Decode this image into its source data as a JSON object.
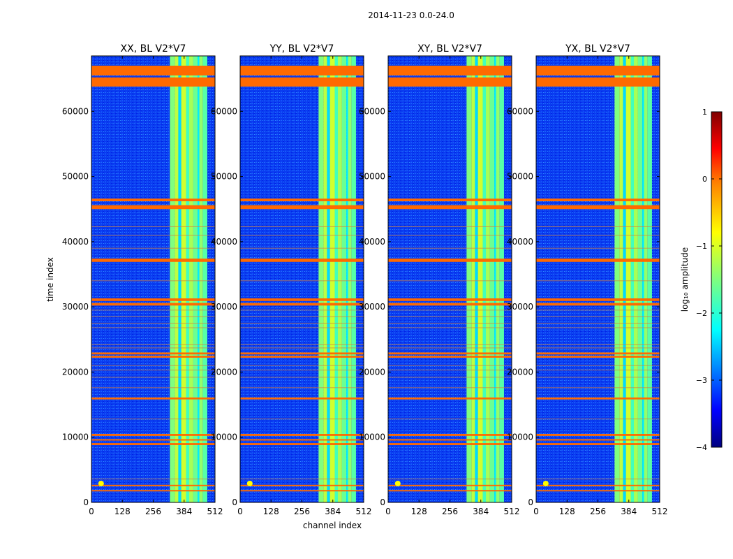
{
  "figure_title": "2014-11-23 0.0-24.0",
  "colors": {
    "background": "#ffffff",
    "flag": "#ff6a00",
    "faint_flag": "#d7823c",
    "panel_border": "#000000",
    "colormap": [
      "#00007f",
      "#0000ff",
      "#007fff",
      "#00ffff",
      "#7fff7f",
      "#ffff00",
      "#ff7f00",
      "#ff0000",
      "#7f0000"
    ]
  },
  "chart_data": {
    "type": "heatmap",
    "xlabel": "channel index",
    "ylabel": "time index",
    "xlim": [
      0,
      512
    ],
    "ylim": [
      0,
      68500
    ],
    "xticks": [
      0,
      128,
      256,
      384,
      512
    ],
    "yticks": [
      0,
      10000,
      20000,
      30000,
      40000,
      50000,
      60000
    ],
    "ytick_labels": [
      "0",
      "10000",
      "20000",
      "30000",
      "40000",
      "50000",
      "60000"
    ],
    "panels": [
      {
        "title": "XX, BL V2*V7",
        "id": "xx"
      },
      {
        "title": "YY, BL V2*V7",
        "id": "yy"
      },
      {
        "title": "XY, BL V2*V7",
        "id": "xy"
      },
      {
        "title": "YX, BL V2*V7",
        "id": "yx"
      }
    ],
    "rfi_band": {
      "channel_start": 325,
      "channel_end": 480
    },
    "rfi_columns": [
      {
        "start": 325,
        "end": 345,
        "level": -1.5
      },
      {
        "start": 345,
        "end": 360,
        "level": -1.2
      },
      {
        "start": 360,
        "end": 372,
        "level": -2.3
      },
      {
        "start": 372,
        "end": 392,
        "level": -1.1
      },
      {
        "start": 392,
        "end": 405,
        "level": -1.8
      },
      {
        "start": 405,
        "end": 422,
        "level": -1.3
      },
      {
        "start": 422,
        "end": 440,
        "level": -1.6
      },
      {
        "start": 440,
        "end": 447,
        "level": -2.2
      },
      {
        "start": 447,
        "end": 462,
        "level": -1.4
      },
      {
        "start": 462,
        "end": 480,
        "level": -1.7
      }
    ],
    "background_level": -3.0,
    "flagged_time_ranges": [
      [
        63800,
        65200
      ],
      [
        65500,
        67000
      ],
      [
        45000,
        45600
      ],
      [
        46200,
        46600
      ],
      [
        36900,
        37400
      ],
      [
        30200,
        30600
      ],
      [
        30900,
        31300
      ],
      [
        22200,
        22500
      ],
      [
        22700,
        23000
      ],
      [
        15800,
        16100
      ],
      [
        10200,
        10500
      ],
      [
        9500,
        9700
      ],
      [
        8800,
        9100
      ],
      [
        2500,
        2700
      ],
      [
        1700,
        1900
      ]
    ],
    "faint_flag_lines": [
      42300,
      41000,
      39000,
      34000,
      29500,
      28500,
      27500,
      26800,
      24200,
      23700,
      21000,
      20300,
      19200,
      17600,
      12800,
      3600
    ],
    "colorbar": {
      "label": "log₁₀ amplitude",
      "range": [
        -4,
        1
      ],
      "ticks": [
        1,
        0,
        -1,
        -2,
        -3,
        -4
      ],
      "tick_labels": [
        "1",
        "0",
        "−1",
        "−2",
        "−3",
        "−4"
      ]
    }
  }
}
